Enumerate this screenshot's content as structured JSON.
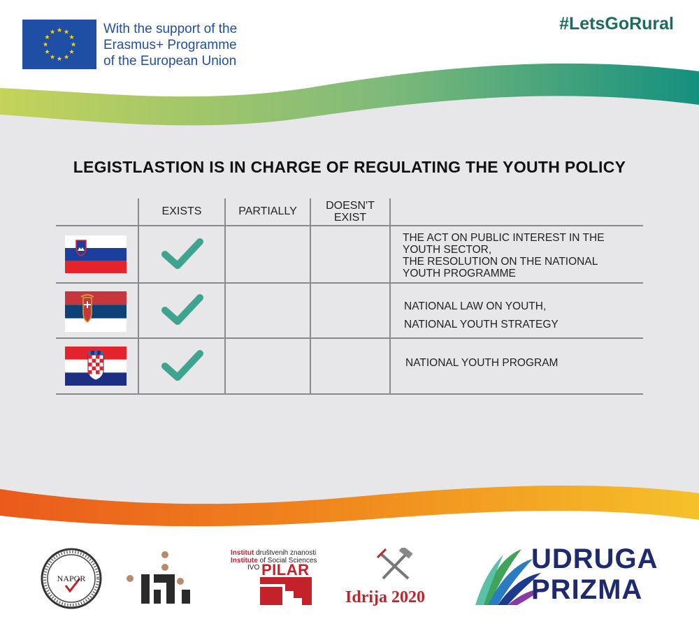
{
  "header": {
    "eu_support_lines": [
      "With the support of the",
      "Erasmus+ Programme",
      "of the European Union"
    ],
    "hashtag": "#LetsGoRural"
  },
  "title": "LEGISTLASTION IS IN CHARGE OF REGULATING THE YOUTH POLICY",
  "table": {
    "columns": {
      "exists": "EXISTS",
      "partially": "PARTIALLY",
      "doesnt_exist": [
        "DOESN'T",
        "EXIST"
      ]
    },
    "rows": [
      {
        "flag": "slovenia-flag-icon",
        "status": "exists",
        "legislation": [
          "THE ACT ON PUBLIC INTEREST IN THE",
          "YOUTH SECTOR,",
          "THE RESOLUTION ON THE NATIONAL",
          "YOUTH PROGRAMME"
        ]
      },
      {
        "flag": "serbia-flag-icon",
        "status": "exists",
        "legislation": [
          "NATIONAL LAW ON YOUTH,",
          "NATIONAL YOUTH STRATEGY"
        ]
      },
      {
        "flag": "croatia-flag-icon",
        "status": "exists",
        "legislation": [
          "NATIONAL YOUTH PROGRAM"
        ]
      }
    ]
  },
  "footer_logos": {
    "napor": "NAPOR",
    "pilar": {
      "line1_bold": "Institut",
      "line1_rest": "društvenih znanosti",
      "line2_bold": "Institute",
      "line2_rest": "of Social Sciences",
      "ivo": "IVO",
      "name": "PILAR"
    },
    "idrija": "Idrija 2020",
    "prizma": [
      "UDRUGA",
      "PRIZMA"
    ]
  },
  "colors": {
    "check": "#3fa48f",
    "panel": "#e7e6e8",
    "hashtag": "#1d6a5e",
    "eu_blue": "#1f4f9e",
    "title": "#111111"
  }
}
